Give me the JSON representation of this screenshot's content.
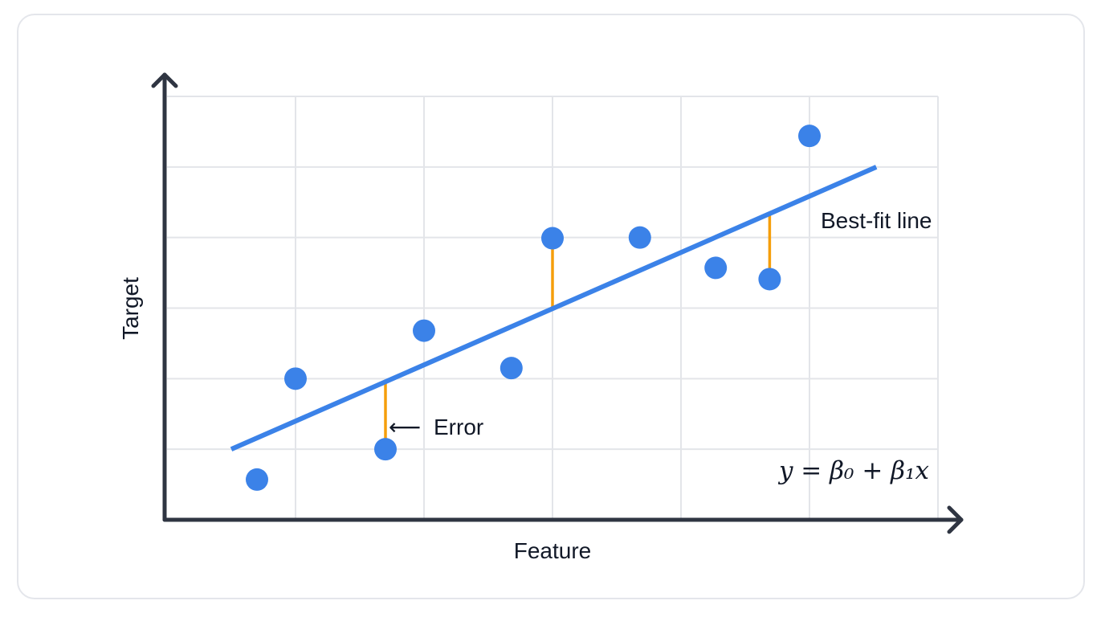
{
  "chart_data": {
    "type": "scatter",
    "title": "",
    "xlabel": "Feature",
    "ylabel": "Target",
    "xlim": [
      0,
      6
    ],
    "ylim": [
      0,
      6
    ],
    "grid": true,
    "points": [
      {
        "x": 0.7,
        "y": 0.57
      },
      {
        "x": 1.0,
        "y": 2.0
      },
      {
        "x": 1.7,
        "y": 1.0
      },
      {
        "x": 2.0,
        "y": 2.68
      },
      {
        "x": 2.68,
        "y": 2.15
      },
      {
        "x": 3.0,
        "y": 3.99
      },
      {
        "x": 3.68,
        "y": 4.0
      },
      {
        "x": 4.27,
        "y": 3.57
      },
      {
        "x": 4.69,
        "y": 3.41
      },
      {
        "x": 5.0,
        "y": 5.44
      }
    ],
    "fit_line": {
      "name": "Best-fit line",
      "x": [
        0.5,
        5.52
      ],
      "y": [
        1.0,
        5.0
      ]
    },
    "residuals": [
      {
        "x": 1.7,
        "y_point": 1.0,
        "y_line": 1.96
      },
      {
        "x": 3.0,
        "y_point": 3.99,
        "y_line": 2.99
      },
      {
        "x": 4.69,
        "y_point": 3.41,
        "y_line": 4.34
      }
    ],
    "annotations": {
      "error_label": "Error",
      "error_arrow": "⟵",
      "fit_label": "Best-fit line",
      "equation": "y = β₀ + β₁x"
    },
    "colors": {
      "points": "#3b82e8",
      "line": "#3b82e8",
      "residual": "#f59e0b",
      "axis": "#2f3542",
      "grid": "#e3e5e9"
    }
  }
}
